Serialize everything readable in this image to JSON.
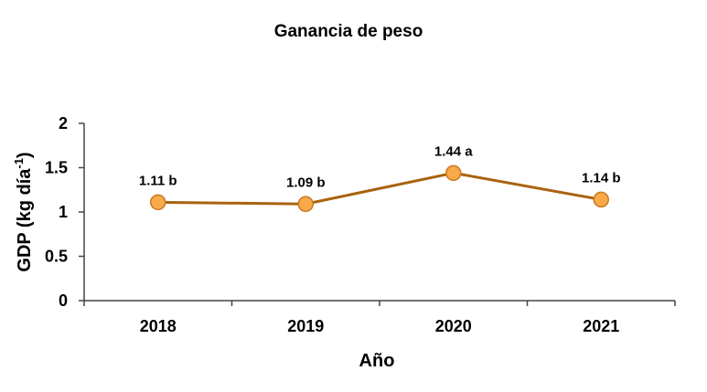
{
  "chart_data": {
    "type": "line",
    "title": "Ganancia de peso",
    "xlabel": "Año",
    "ylabel": {
      "main": "GDP (kg día",
      "superscript": "-1",
      "suffix": ")"
    },
    "categories": [
      "2018",
      "2019",
      "2020",
      "2021"
    ],
    "series": [
      {
        "values": [
          1.11,
          1.09,
          1.44,
          1.14
        ],
        "labels": [
          "1.11 b",
          "1.09 b",
          "1.44 a",
          "1.14 b"
        ],
        "line_color": "#A8620E",
        "marker_fill": "#F8A94A",
        "marker_stroke": "#C97A1E"
      }
    ],
    "ylim": [
      0,
      2
    ],
    "yticks": [
      "0",
      "0.5",
      "1",
      "1.5",
      "2"
    ],
    "ytick_values": [
      0,
      0.5,
      1,
      1.5,
      2
    ],
    "grid": false,
    "legend": "none"
  }
}
